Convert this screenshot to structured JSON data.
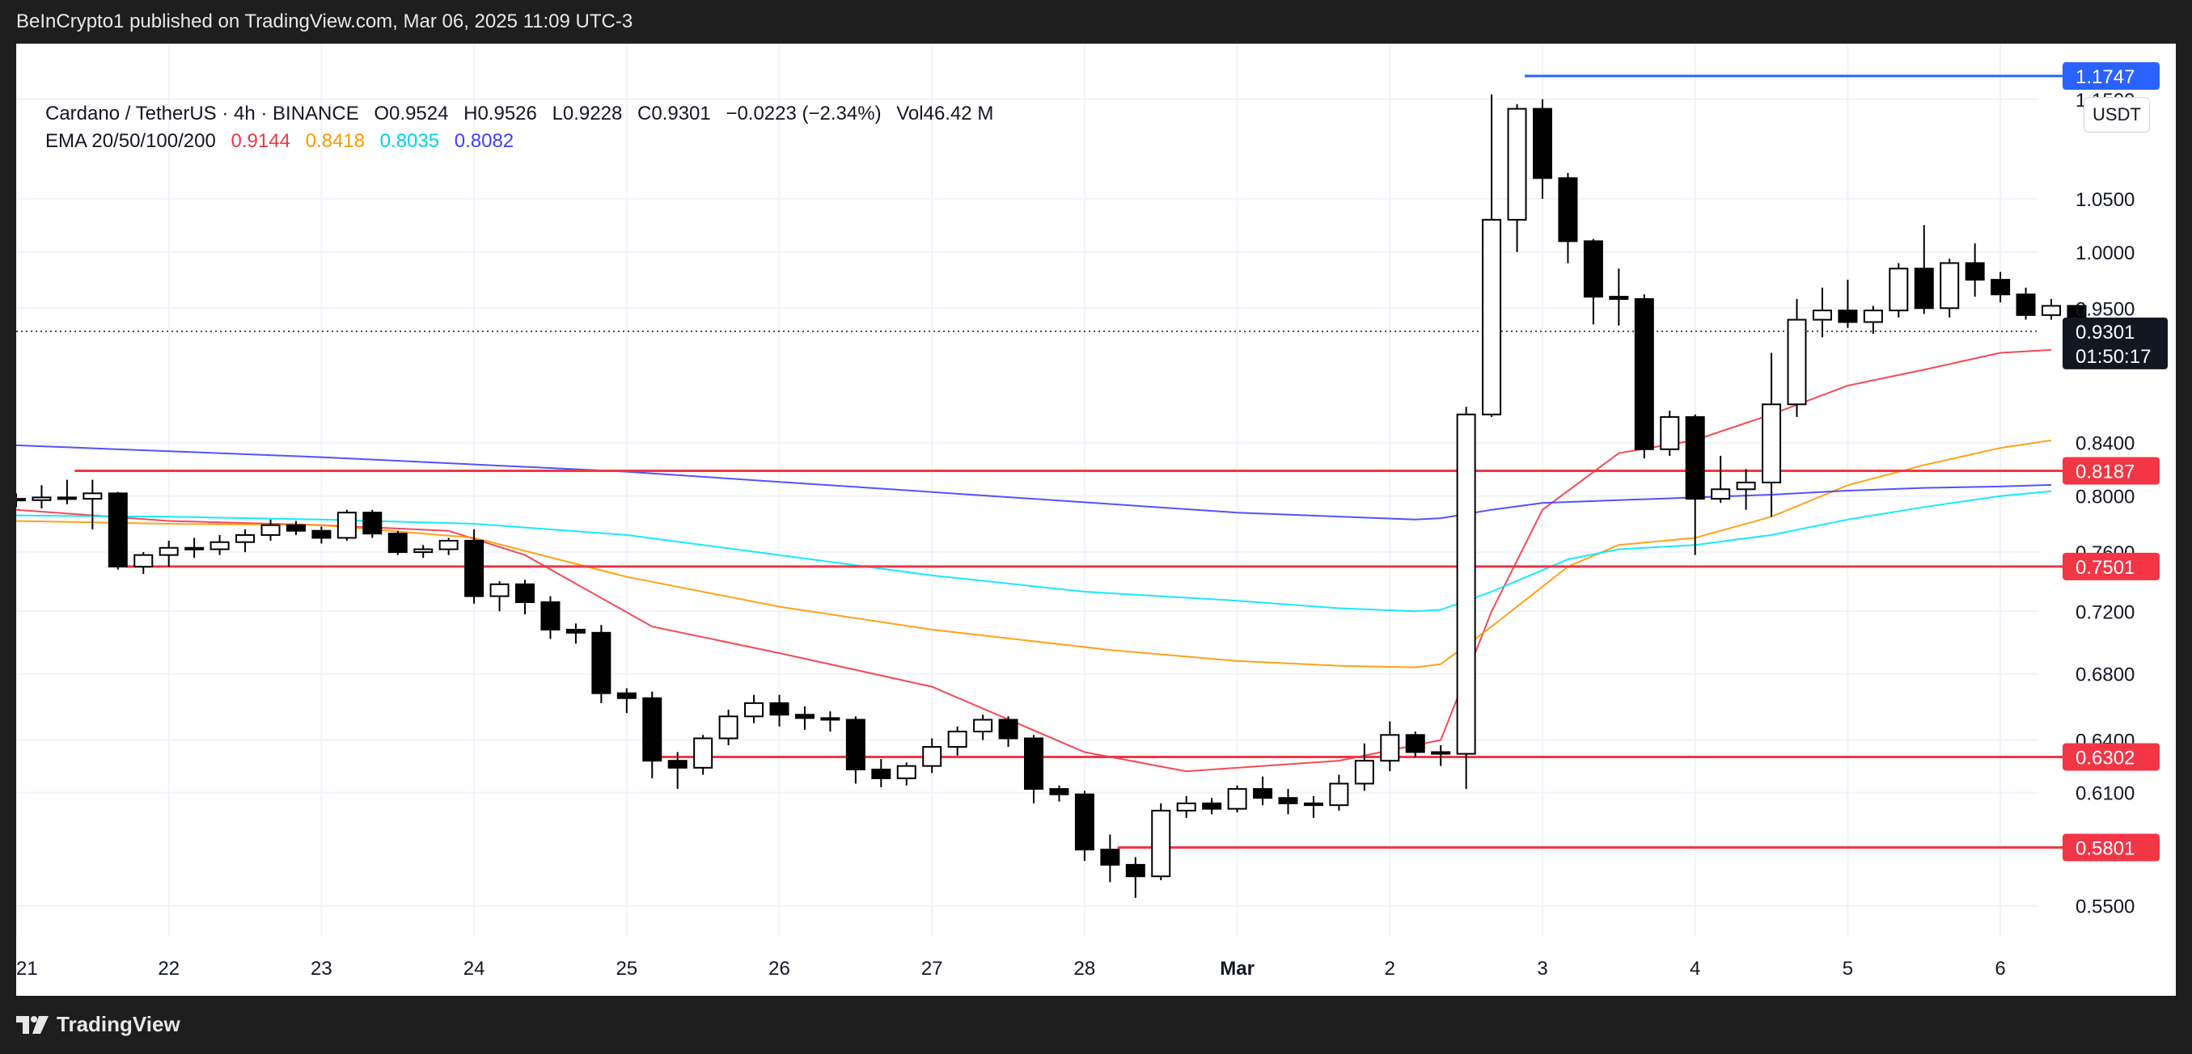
{
  "header": {
    "publisher_text": "BeInCrypto1 published on TradingView.com, Mar 06, 2025 11:09 UTC-3"
  },
  "legend": {
    "symbol": "Cardano / TetherUS · 4h · BINANCE",
    "open": "O0.9524",
    "high": "H0.9526",
    "low": "L0.9228",
    "close": "C0.9301",
    "change": "−0.0223 (−2.34%)",
    "volume": "Vol46.42 M",
    "ema_label": "EMA 20/50/100/200",
    "ema20": "0.9144",
    "ema50": "0.8418",
    "ema100": "0.8035",
    "ema200": "0.8082"
  },
  "currency_button": "USDT",
  "footer": {
    "brand": "TradingView"
  },
  "colors": {
    "ema20": "#f23645",
    "ema50": "#ff9800",
    "ema100": "#00e5ff",
    "ema200": "#3f3fff",
    "support": "#f23645",
    "resistance": "#2962ff",
    "candle_up": "#ffffff",
    "candle_down": "#000000"
  },
  "chart_data": {
    "type": "candlestick",
    "title": "Cardano / TetherUS · 4h · BINANCE",
    "y_scale": "log",
    "ylim": [
      0.535,
      1.21
    ],
    "price_ticks": [
      "1.1500",
      "1.0500",
      "1.0000",
      "0.9500",
      "0.8400",
      "0.8000",
      "0.7600",
      "0.7200",
      "0.6800",
      "0.6400",
      "0.6100",
      "0.5500"
    ],
    "time_labels": [
      {
        "label": "21",
        "t": 0
      },
      {
        "label": "22",
        "t": 6
      },
      {
        "label": "23",
        "t": 12
      },
      {
        "label": "24",
        "t": 18
      },
      {
        "label": "25",
        "t": 24
      },
      {
        "label": "26",
        "t": 30
      },
      {
        "label": "27",
        "t": 36
      },
      {
        "label": "28",
        "t": 42
      },
      {
        "label": "Mar",
        "t": 48
      },
      {
        "label": "2",
        "t": 54
      },
      {
        "label": "3",
        "t": 60
      },
      {
        "label": "4",
        "t": 66
      },
      {
        "label": "5",
        "t": 72
      },
      {
        "label": "6",
        "t": 78
      }
    ],
    "candles": [
      [
        0.798,
        0.802,
        0.792,
        0.797
      ],
      [
        0.797,
        0.808,
        0.791,
        0.799
      ],
      [
        0.799,
        0.812,
        0.794,
        0.798
      ],
      [
        0.798,
        0.812,
        0.776,
        0.802
      ],
      [
        0.802,
        0.803,
        0.748,
        0.75
      ],
      [
        0.75,
        0.76,
        0.745,
        0.758
      ],
      [
        0.758,
        0.768,
        0.75,
        0.763
      ],
      [
        0.763,
        0.77,
        0.756,
        0.762
      ],
      [
        0.762,
        0.772,
        0.758,
        0.767
      ],
      [
        0.767,
        0.776,
        0.76,
        0.772
      ],
      [
        0.772,
        0.783,
        0.768,
        0.779
      ],
      [
        0.779,
        0.782,
        0.772,
        0.775
      ],
      [
        0.775,
        0.778,
        0.766,
        0.77
      ],
      [
        0.77,
        0.79,
        0.768,
        0.788
      ],
      [
        0.788,
        0.79,
        0.77,
        0.773
      ],
      [
        0.773,
        0.775,
        0.758,
        0.76
      ],
      [
        0.76,
        0.765,
        0.756,
        0.762
      ],
      [
        0.762,
        0.77,
        0.758,
        0.768
      ],
      [
        0.768,
        0.776,
        0.725,
        0.73
      ],
      [
        0.73,
        0.74,
        0.72,
        0.738
      ],
      [
        0.738,
        0.741,
        0.718,
        0.726
      ],
      [
        0.726,
        0.73,
        0.702,
        0.708
      ],
      [
        0.708,
        0.712,
        0.699,
        0.706
      ],
      [
        0.706,
        0.711,
        0.662,
        0.668
      ],
      [
        0.668,
        0.671,
        0.656,
        0.665
      ],
      [
        0.665,
        0.669,
        0.618,
        0.628
      ],
      [
        0.628,
        0.633,
        0.612,
        0.624
      ],
      [
        0.624,
        0.643,
        0.62,
        0.641
      ],
      [
        0.641,
        0.658,
        0.637,
        0.654
      ],
      [
        0.654,
        0.667,
        0.65,
        0.662
      ],
      [
        0.662,
        0.667,
        0.648,
        0.655
      ],
      [
        0.655,
        0.66,
        0.646,
        0.653
      ],
      [
        0.653,
        0.657,
        0.645,
        0.652
      ],
      [
        0.652,
        0.654,
        0.615,
        0.623
      ],
      [
        0.623,
        0.629,
        0.613,
        0.618
      ],
      [
        0.618,
        0.627,
        0.614,
        0.625
      ],
      [
        0.625,
        0.641,
        0.621,
        0.636
      ],
      [
        0.636,
        0.648,
        0.631,
        0.645
      ],
      [
        0.645,
        0.655,
        0.64,
        0.652
      ],
      [
        0.652,
        0.654,
        0.636,
        0.641
      ],
      [
        0.641,
        0.643,
        0.604,
        0.612
      ],
      [
        0.612,
        0.614,
        0.605,
        0.609
      ],
      [
        0.609,
        0.611,
        0.573,
        0.579
      ],
      [
        0.579,
        0.587,
        0.562,
        0.571
      ],
      [
        0.571,
        0.575,
        0.554,
        0.565
      ],
      [
        0.565,
        0.604,
        0.563,
        0.6
      ],
      [
        0.6,
        0.608,
        0.596,
        0.604
      ],
      [
        0.604,
        0.607,
        0.598,
        0.601
      ],
      [
        0.601,
        0.614,
        0.599,
        0.612
      ],
      [
        0.612,
        0.619,
        0.603,
        0.607
      ],
      [
        0.607,
        0.612,
        0.598,
        0.604
      ],
      [
        0.604,
        0.608,
        0.596,
        0.603
      ],
      [
        0.603,
        0.62,
        0.6,
        0.615
      ],
      [
        0.615,
        0.638,
        0.611,
        0.628
      ],
      [
        0.628,
        0.651,
        0.622,
        0.643
      ],
      [
        0.643,
        0.645,
        0.63,
        0.633
      ],
      [
        0.633,
        0.637,
        0.625,
        0.632
      ],
      [
        0.632,
        0.868,
        0.612,
        0.862
      ],
      [
        0.862,
        1.155,
        0.86,
        1.03
      ],
      [
        1.03,
        1.145,
        1.0,
        1.14
      ],
      [
        1.14,
        1.15,
        1.05,
        1.07
      ],
      [
        1.07,
        1.075,
        0.99,
        1.01
      ],
      [
        1.01,
        1.012,
        0.936,
        0.96
      ],
      [
        0.96,
        0.985,
        0.935,
        0.958
      ],
      [
        0.958,
        0.962,
        0.828,
        0.835
      ],
      [
        0.835,
        0.865,
        0.83,
        0.86
      ],
      [
        0.86,
        0.862,
        0.758,
        0.798
      ],
      [
        0.798,
        0.83,
        0.795,
        0.805
      ],
      [
        0.805,
        0.82,
        0.79,
        0.81
      ],
      [
        0.81,
        0.912,
        0.785,
        0.87
      ],
      [
        0.87,
        0.958,
        0.86,
        0.94
      ],
      [
        0.94,
        0.968,
        0.925,
        0.948
      ],
      [
        0.948,
        0.975,
        0.933,
        0.938
      ],
      [
        0.938,
        0.952,
        0.928,
        0.948
      ],
      [
        0.948,
        0.99,
        0.942,
        0.985
      ],
      [
        0.985,
        1.025,
        0.945,
        0.95
      ],
      [
        0.95,
        0.994,
        0.942,
        0.99
      ],
      [
        0.99,
        1.008,
        0.96,
        0.975
      ],
      [
        0.975,
        0.982,
        0.955,
        0.962
      ],
      [
        0.962,
        0.968,
        0.94,
        0.944
      ],
      [
        0.944,
        0.958,
        0.94,
        0.952
      ],
      [
        0.952,
        0.953,
        0.923,
        0.93
      ]
    ],
    "ema_series": [
      {
        "name": "EMA 20",
        "points": [
          [
            0,
            0.79
          ],
          [
            6,
            0.782
          ],
          [
            12,
            0.779
          ],
          [
            17,
            0.775
          ],
          [
            20,
            0.758
          ],
          [
            25,
            0.71
          ],
          [
            30,
            0.693
          ],
          [
            36,
            0.672
          ],
          [
            42,
            0.633
          ],
          [
            46,
            0.622
          ],
          [
            52,
            0.628
          ],
          [
            55,
            0.637
          ],
          [
            56,
            0.64
          ],
          [
            58,
            0.72
          ],
          [
            60,
            0.79
          ],
          [
            63,
            0.832
          ],
          [
            66,
            0.842
          ],
          [
            69,
            0.862
          ],
          [
            72,
            0.885
          ],
          [
            75,
            0.898
          ],
          [
            78,
            0.912
          ],
          [
            80,
            0.9144
          ]
        ]
      },
      {
        "name": "EMA 50",
        "points": [
          [
            0,
            0.782
          ],
          [
            6,
            0.78
          ],
          [
            12,
            0.779
          ],
          [
            18,
            0.77
          ],
          [
            24,
            0.743
          ],
          [
            30,
            0.723
          ],
          [
            36,
            0.708
          ],
          [
            43,
            0.695
          ],
          [
            48,
            0.688
          ],
          [
            52,
            0.685
          ],
          [
            55,
            0.684
          ],
          [
            56,
            0.686
          ],
          [
            58,
            0.71
          ],
          [
            61,
            0.75
          ],
          [
            63,
            0.765
          ],
          [
            66,
            0.77
          ],
          [
            69,
            0.785
          ],
          [
            72,
            0.808
          ],
          [
            75,
            0.823
          ],
          [
            78,
            0.836
          ],
          [
            80,
            0.8418
          ]
        ]
      },
      {
        "name": "EMA 100",
        "points": [
          [
            0,
            0.786
          ],
          [
            6,
            0.785
          ],
          [
            12,
            0.783
          ],
          [
            18,
            0.78
          ],
          [
            24,
            0.772
          ],
          [
            30,
            0.758
          ],
          [
            36,
            0.744
          ],
          [
            42,
            0.733
          ],
          [
            48,
            0.727
          ],
          [
            52,
            0.722
          ],
          [
            55,
            0.72
          ],
          [
            56,
            0.721
          ],
          [
            58,
            0.733
          ],
          [
            61,
            0.755
          ],
          [
            63,
            0.762
          ],
          [
            66,
            0.765
          ],
          [
            69,
            0.772
          ],
          [
            72,
            0.783
          ],
          [
            75,
            0.792
          ],
          [
            78,
            0.8
          ],
          [
            80,
            0.8035
          ]
        ]
      },
      {
        "name": "EMA 200",
        "points": [
          [
            0,
            0.838
          ],
          [
            12,
            0.829
          ],
          [
            24,
            0.818
          ],
          [
            36,
            0.803
          ],
          [
            48,
            0.788
          ],
          [
            55,
            0.783
          ],
          [
            56,
            0.784
          ],
          [
            58,
            0.79
          ],
          [
            60,
            0.795
          ],
          [
            63,
            0.797
          ],
          [
            66,
            0.799
          ],
          [
            69,
            0.801
          ],
          [
            72,
            0.804
          ],
          [
            75,
            0.806
          ],
          [
            78,
            0.807
          ],
          [
            80,
            0.8082
          ]
        ]
      }
    ],
    "horizontal_levels": [
      {
        "price": 0.8187,
        "label": "0.8187",
        "type": "support",
        "t_start": 2.3
      },
      {
        "price": 0.7501,
        "label": "0.7501",
        "type": "support",
        "t_start": 4.3
      },
      {
        "price": 0.6302,
        "label": "0.6302",
        "type": "support",
        "t_start": 25.3
      },
      {
        "price": 0.5801,
        "label": "0.5801",
        "type": "support",
        "t_start": 43.3
      },
      {
        "price": 1.1747,
        "label": "1.1747",
        "type": "resistance",
        "t_start": 59.3
      }
    ],
    "current_price": {
      "price": 0.9301,
      "label": "0.9301",
      "countdown": "01:50:17"
    }
  }
}
